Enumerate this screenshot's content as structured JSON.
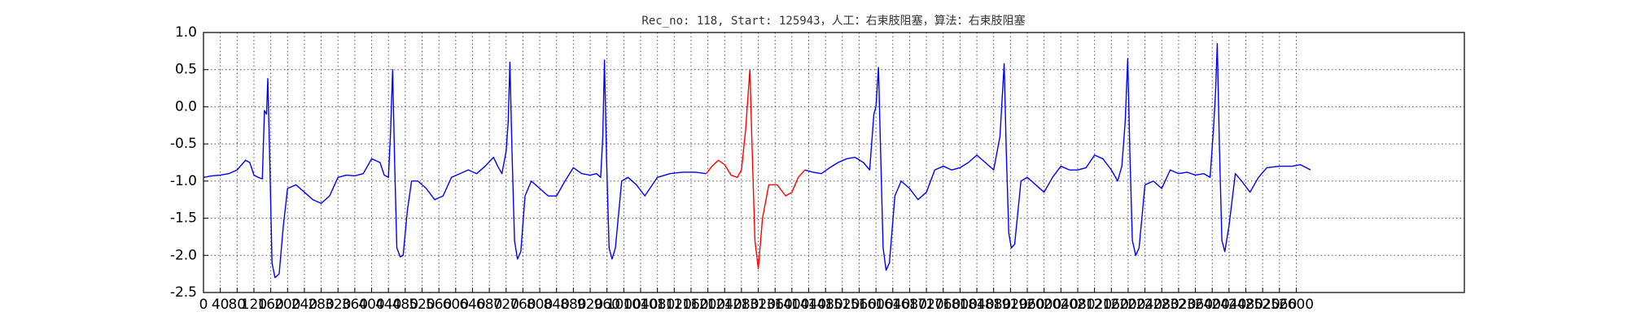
{
  "chart_data": {
    "type": "line",
    "title": "Rec_no: 118, Start: 125943，人工：右束肢阻塞，算法：右束肢阻塞",
    "xlim": [
      0,
      3000
    ],
    "ylim": [
      -2.5,
      1.0
    ],
    "xticks": [
      0,
      40,
      80,
      120,
      160,
      200,
      240,
      280,
      320,
      360,
      400,
      440,
      480,
      520,
      560,
      600,
      640,
      680,
      720,
      760,
      800,
      840,
      880,
      920,
      960,
      1000,
      1040,
      1080,
      1120,
      1160,
      1200,
      1240,
      1280,
      1320,
      1360,
      1400,
      1440,
      1480,
      1520,
      1560,
      1600,
      1640,
      1680,
      1720,
      1760,
      1800,
      1840,
      1880,
      1920,
      1960,
      2000,
      2040,
      2080,
      2120,
      2160,
      2200,
      2240,
      2280,
      2320,
      2360,
      2400,
      2440,
      2480,
      2520,
      2560,
      2600
    ],
    "yticks": [
      {
        "value": -2.5,
        "label": "-2.5"
      },
      {
        "value": -2,
        "label": "-2.0"
      },
      -1.5,
      {
        "value": -1,
        "label": "-1.0"
      },
      -0.5,
      {
        "value": 0,
        "label": "0.0"
      },
      0.5,
      {
        "value": 1,
        "label": "1.0"
      }
    ],
    "grid": true,
    "series": [
      {
        "color": "#0000ff",
        "x": [
          0,
          20,
          40,
          60,
          80,
          100,
          110,
          120,
          130,
          140,
          145,
          150,
          153,
          158,
          163,
          170,
          180,
          190,
          200,
          220,
          240,
          260,
          280,
          300,
          320,
          340,
          360,
          380,
          400,
          420,
          430,
          440,
          445,
          450,
          455,
          460,
          468,
          475,
          485,
          495,
          510,
          530,
          550,
          570,
          590,
          610,
          630,
          650,
          670,
          690,
          700,
          710,
          720,
          725,
          729,
          734,
          740,
          747,
          755,
          765,
          780,
          800,
          820,
          840,
          860,
          880,
          900,
          920,
          935,
          945,
          950,
          954,
          959,
          965,
          972,
          980,
          995,
          1010,
          1030,
          1050,
          1080,
          1110,
          1140,
          1170,
          1196,
          1300,
          1431,
          1450,
          1470,
          1490,
          1510,
          1530,
          1550,
          1570,
          1585,
          1595,
          1600,
          1606,
          1611,
          1617,
          1624,
          1632,
          1645,
          1660,
          1680,
          1700,
          1720,
          1740,
          1760,
          1780,
          1800,
          1820,
          1840,
          1860,
          1880,
          1895,
          1905,
          1910,
          1916,
          1922,
          1930,
          1945,
          1960,
          1980,
          2000,
          2020,
          2040,
          2060,
          2080,
          2100,
          2120,
          2140,
          2160,
          2175,
          2185,
          2193,
          2199,
          2204,
          2210,
          2218,
          2226,
          2240,
          2260,
          2280,
          2300,
          2320,
          2340,
          2360,
          2380,
          2395,
          2403,
          2408,
          2412,
          2417,
          2423,
          2430,
          2440,
          2455,
          2470,
          2490,
          2510,
          2530,
          2560,
          2590,
          2610,
          2634
        ],
        "values": [
          -0.95,
          -0.93,
          -0.92,
          -0.9,
          -0.85,
          -0.72,
          -0.75,
          -0.92,
          -0.95,
          -0.97,
          -0.05,
          -0.1,
          0.38,
          -0.8,
          -2.1,
          -2.3,
          -2.25,
          -1.6,
          -1.1,
          -1.05,
          -1.15,
          -1.25,
          -1.3,
          -1.2,
          -0.95,
          -0.92,
          -0.93,
          -0.9,
          -0.7,
          -0.75,
          -0.92,
          -0.95,
          -0.35,
          0.5,
          -0.8,
          -1.9,
          -2.02,
          -2.0,
          -1.4,
          -1.0,
          -1.0,
          -1.1,
          -1.25,
          -1.2,
          -0.95,
          -0.9,
          -0.85,
          -0.9,
          -0.8,
          -0.68,
          -0.8,
          -0.9,
          -0.6,
          -0.2,
          0.6,
          -0.6,
          -1.8,
          -2.05,
          -1.95,
          -1.2,
          -1.0,
          -1.1,
          -1.2,
          -1.2,
          -1.0,
          -0.82,
          -0.9,
          -0.92,
          -0.9,
          -0.95,
          -0.4,
          0.63,
          -0.7,
          -1.9,
          -2.05,
          -1.9,
          -1.0,
          -0.95,
          -1.05,
          -1.2,
          -0.95,
          -0.9,
          -0.88,
          -0.88,
          -0.9,
          null,
          -0.85,
          -0.88,
          -0.9,
          -0.82,
          -0.75,
          -0.7,
          -0.68,
          -0.75,
          -0.85,
          -0.1,
          0.0,
          0.53,
          -0.6,
          -1.9,
          -2.2,
          -2.1,
          -1.2,
          -1.0,
          -1.1,
          -1.25,
          -1.15,
          -0.85,
          -0.8,
          -0.85,
          -0.82,
          -0.75,
          -0.65,
          -0.75,
          -0.85,
          -0.4,
          0.58,
          -0.6,
          -1.7,
          -1.9,
          -1.85,
          -1.0,
          -0.95,
          -1.05,
          -1.15,
          -0.95,
          -0.8,
          -0.85,
          -0.85,
          -0.82,
          -0.65,
          -0.7,
          -0.85,
          -1.0,
          -0.8,
          -0.2,
          0.65,
          -0.6,
          -1.8,
          -2.0,
          -1.9,
          -1.05,
          -1.0,
          -1.1,
          -0.85,
          -0.9,
          -0.88,
          -0.92,
          -0.9,
          -0.95,
          -0.3,
          0.2,
          0.85,
          -0.5,
          -1.8,
          -1.95,
          -1.6,
          -0.9,
          -1.0,
          -1.15,
          -0.95,
          -0.82,
          -0.8,
          -0.8,
          -0.78,
          -0.85
        ]
      },
      {
        "color": "#ff0000",
        "x": [
          1196,
          1210,
          1225,
          1240,
          1255,
          1270,
          1280,
          1290,
          1300,
          1305,
          1312,
          1320,
          1330,
          1345,
          1365,
          1385,
          1400,
          1415,
          1431
        ],
        "values": [
          -0.9,
          -0.8,
          -0.72,
          -0.78,
          -0.92,
          -0.95,
          -0.85,
          -0.3,
          0.5,
          -0.5,
          -1.8,
          -2.18,
          -1.5,
          -1.05,
          -1.05,
          -1.2,
          -1.15,
          -0.95,
          -0.85
        ]
      }
    ]
  }
}
